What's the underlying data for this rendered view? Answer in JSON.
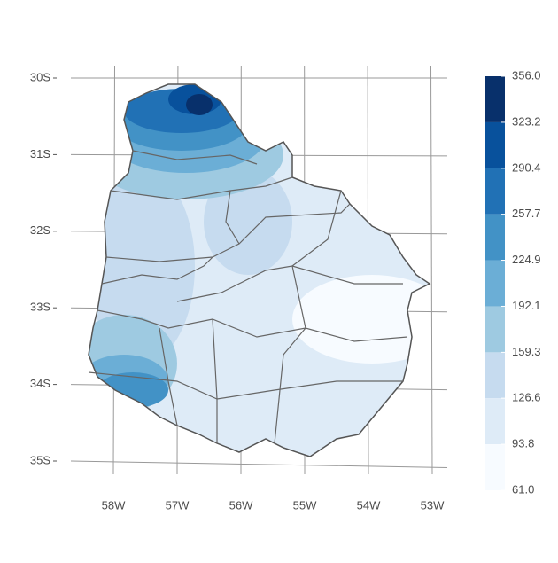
{
  "map": {
    "lat_ticks": [
      {
        "value": -30,
        "label": "30S"
      },
      {
        "value": -31,
        "label": "31S"
      },
      {
        "value": -32,
        "label": "32S"
      },
      {
        "value": -33,
        "label": "33S"
      },
      {
        "value": -34,
        "label": "34S"
      },
      {
        "value": -35,
        "label": "35S"
      }
    ],
    "lon_ticks": [
      {
        "value": -58,
        "label": "58W"
      },
      {
        "value": -57,
        "label": "57W"
      },
      {
        "value": -56,
        "label": "56W"
      },
      {
        "value": -55,
        "label": "55W"
      },
      {
        "value": -54,
        "label": "54W"
      },
      {
        "value": -53,
        "label": "53W"
      }
    ],
    "colorbar": {
      "ticks": [
        {
          "value": 356,
          "label": "356.0"
        },
        {
          "value": 323.2,
          "label": "323.2"
        },
        {
          "value": 290.4,
          "label": "290.4"
        },
        {
          "value": 257.7,
          "label": "257.7"
        },
        {
          "value": 224.9,
          "label": "224.9"
        },
        {
          "value": 192.1,
          "label": "192.1"
        },
        {
          "value": 159.3,
          "label": "159.3"
        },
        {
          "value": 126.6,
          "label": "126.6"
        },
        {
          "value": 93.8,
          "label": "93.8"
        },
        {
          "value": 61,
          "label": "61.0"
        }
      ],
      "colors": [
        "#08306b",
        "#08519c",
        "#2171b5",
        "#4292c6",
        "#6baed6",
        "#9ecae1",
        "#c6dbef",
        "#deebf7",
        "#f7fbff"
      ]
    }
  }
}
